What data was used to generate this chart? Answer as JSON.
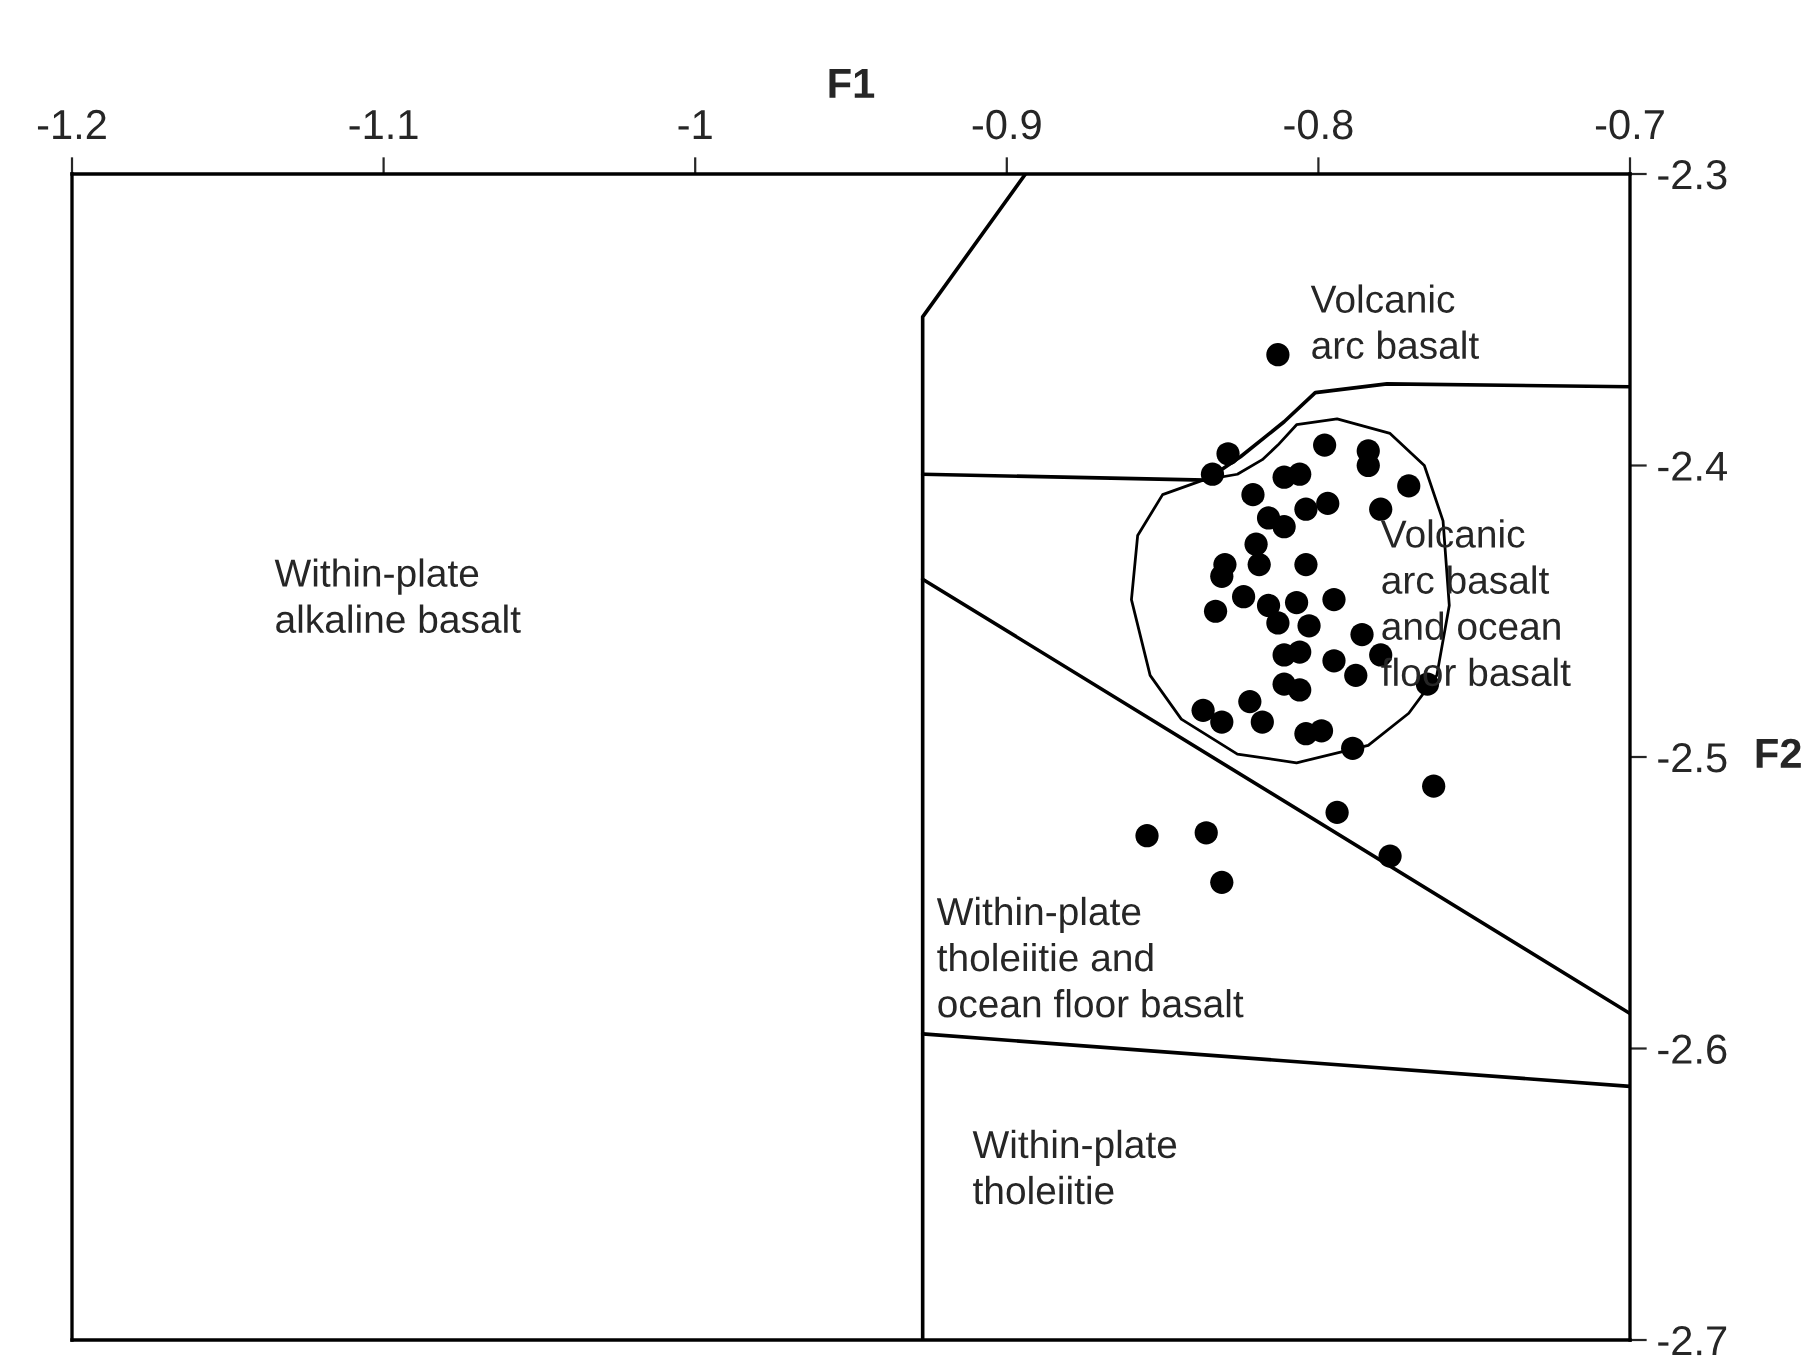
{
  "chart_data": {
    "type": "scatter",
    "xlabel": "F1",
    "ylabel": "F2",
    "xlim": [
      -1.2,
      -0.7
    ],
    "xticks": [
      -1.2,
      -1.1,
      -1,
      -0.9,
      -0.8,
      -0.7
    ],
    "ylim": [
      -2.7,
      -2.3
    ],
    "yticks": [
      -2.7,
      -2.6,
      -2.5,
      -2.4,
      -2.3
    ],
    "grid": false,
    "marker": "circle",
    "series": [
      {
        "color": "#000000",
        "x": [
          -0.813,
          -0.829,
          -0.834,
          -0.798,
          -0.784,
          -0.784,
          -0.771,
          -0.811,
          -0.806,
          -0.821,
          -0.804,
          -0.797,
          -0.78,
          -0.816,
          -0.811,
          -0.82,
          -0.819,
          -0.804,
          -0.83,
          -0.831,
          -0.824,
          -0.816,
          -0.807,
          -0.795,
          -0.833,
          -0.813,
          -0.803,
          -0.786,
          -0.78,
          -0.795,
          -0.811,
          -0.806,
          -0.788,
          -0.765,
          -0.811,
          -0.806,
          -0.837,
          -0.831,
          -0.822,
          -0.818,
          -0.804,
          -0.799,
          -0.789,
          -0.763,
          -0.794,
          -0.777,
          -0.855,
          -0.836,
          -0.831
        ],
        "values": [
          -2.362,
          -2.396,
          -2.403,
          -2.393,
          -2.395,
          -2.4,
          -2.407,
          -2.404,
          -2.403,
          -2.41,
          -2.415,
          -2.413,
          -2.415,
          -2.418,
          -2.421,
          -2.427,
          -2.434,
          -2.434,
          -2.434,
          -2.438,
          -2.445,
          -2.448,
          -2.447,
          -2.446,
          -2.45,
          -2.454,
          -2.455,
          -2.458,
          -2.465,
          -2.467,
          -2.465,
          -2.464,
          -2.472,
          -2.475,
          -2.475,
          -2.477,
          -2.484,
          -2.488,
          -2.481,
          -2.488,
          -2.492,
          -2.491,
          -2.497,
          -2.51,
          -2.519,
          -2.534,
          -2.527,
          -2.526,
          -2.543
        ]
      },
      {
        "type": "line",
        "color": "#000000",
        "marker": "none",
        "x": [
          -0.927,
          -0.927,
          -0.894
        ],
        "values": [
          -2.7,
          -2.349,
          -2.3
        ]
      },
      {
        "type": "line",
        "color": "#000000",
        "marker": "none",
        "x": [
          -0.927,
          -0.836,
          -0.825,
          -0.811,
          -0.801,
          -0.778,
          -0.7
        ],
        "values": [
          -2.403,
          -2.405,
          -2.397,
          -2.385,
          -2.375,
          -2.372,
          -2.373
        ]
      },
      {
        "type": "line",
        "color": "#000000",
        "marker": "none",
        "x": [
          -0.927,
          -0.7
        ],
        "values": [
          -2.439,
          -2.588
        ]
      },
      {
        "type": "line",
        "color": "#000000",
        "marker": "none",
        "x": [
          -0.927,
          -0.7
        ],
        "values": [
          -2.595,
          -2.613
        ]
      }
    ],
    "annotations": [
      "Volcanic\narc basalt",
      "Within-plate\nalkaline basalt",
      "Volcanic\narc basalt\nand ocean\nfloor basalt",
      "Within-plate\ntholeiitie and\nocean floor basalt",
      "Within-plate\ntholeiitie"
    ]
  }
}
